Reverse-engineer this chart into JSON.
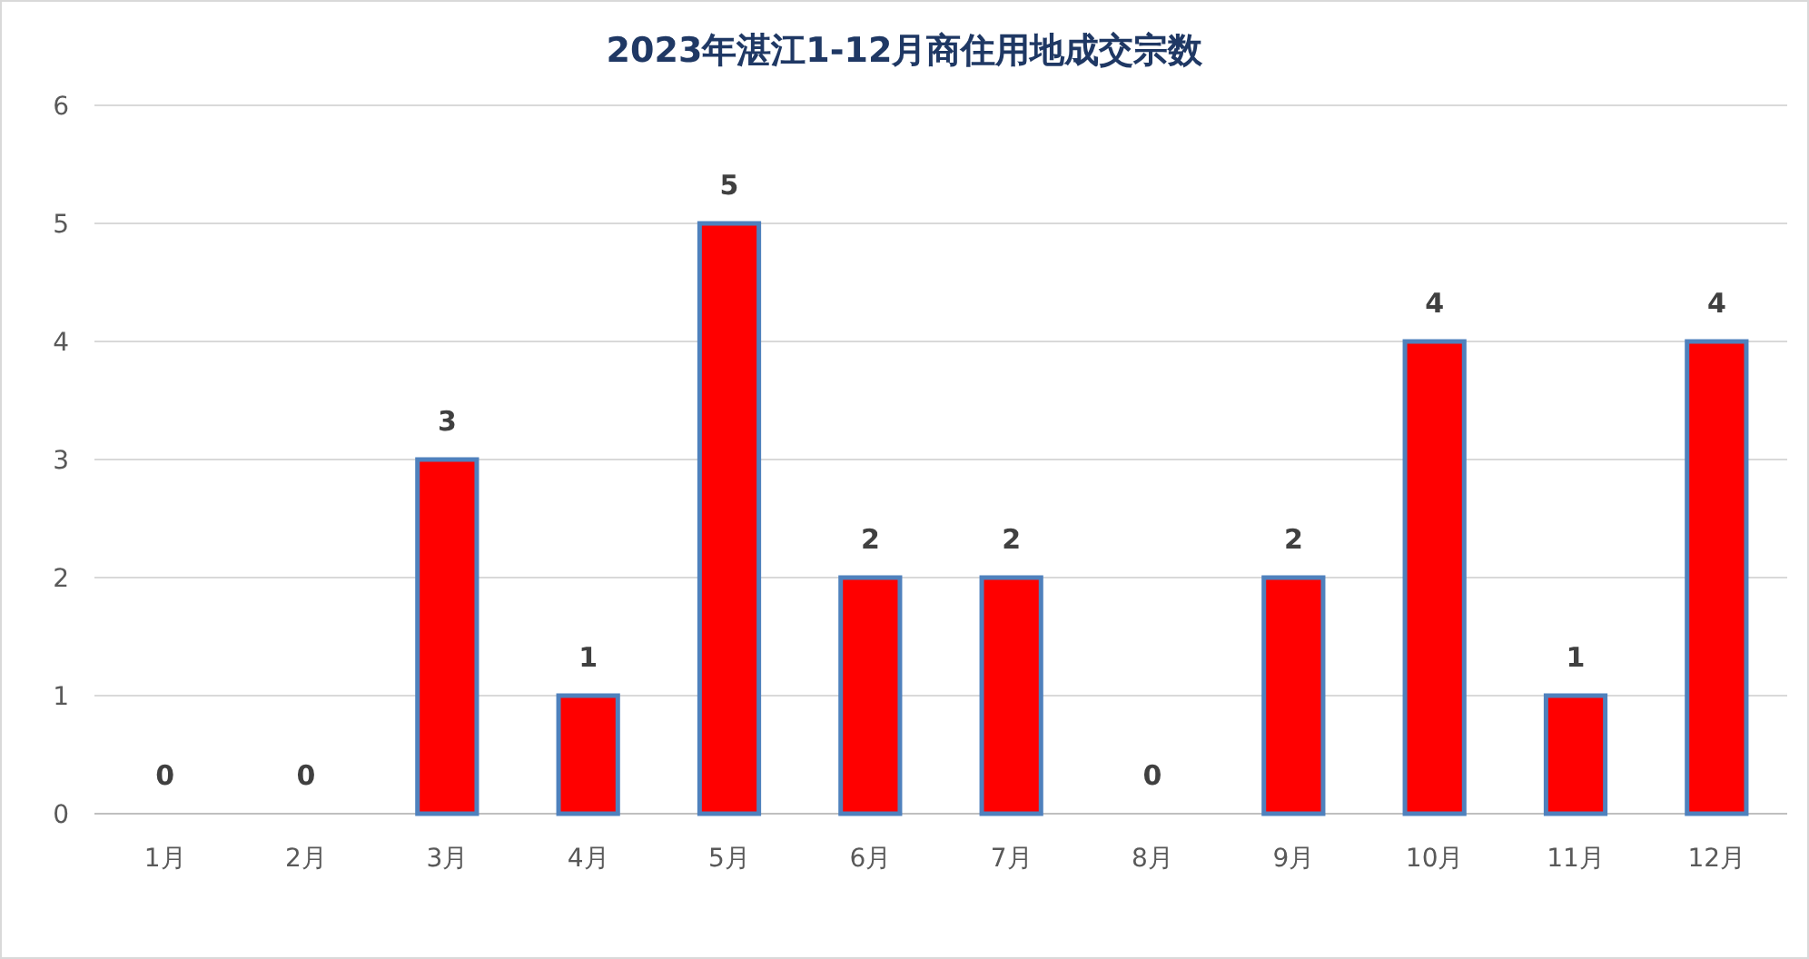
{
  "chart_data": {
    "type": "bar",
    "title": "2023年湛江1-12月商住用地成交宗数",
    "categories": [
      "1月",
      "2月",
      "3月",
      "4月",
      "5月",
      "6月",
      "7月",
      "8月",
      "9月",
      "10月",
      "11月",
      "12月"
    ],
    "values": [
      0,
      0,
      3,
      1,
      5,
      2,
      2,
      0,
      2,
      4,
      1,
      4
    ],
    "color": "#ff0000",
    "ylim": [
      0,
      6
    ],
    "yticks": [
      0,
      1,
      2,
      3,
      4,
      5,
      6
    ],
    "grid": "y",
    "data_labels": true
  }
}
